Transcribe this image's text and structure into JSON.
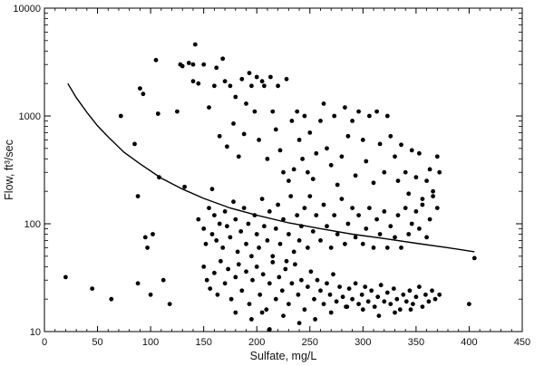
{
  "chart_data": {
    "type": "scatter",
    "xlabel": "Sulfate, mg/L",
    "ylabel": "Flow, ft³/sec",
    "xlim": [
      0,
      450
    ],
    "ylim": [
      10,
      10000
    ],
    "yscale": "log",
    "x_ticks": [
      0,
      50,
      100,
      150,
      200,
      250,
      300,
      350,
      400,
      450
    ],
    "x_tick_labels": [
      "0",
      "50",
      "100",
      "150",
      "200",
      "250",
      "300",
      "350",
      "400",
      "450"
    ],
    "y_ticks": [
      10,
      100,
      1000,
      10000
    ],
    "y_tick_labels": [
      "10",
      "100",
      "1000",
      "10000"
    ],
    "grid": false,
    "point_color": "#000000",
    "line_color": "#000000",
    "fit_curve": {
      "x": [
        22,
        30,
        40,
        50,
        60,
        75,
        90,
        110,
        130,
        150,
        175,
        200,
        230,
        260,
        290,
        320,
        350,
        380,
        405
      ],
      "y": [
        2000,
        1480,
        1080,
        810,
        640,
        460,
        360,
        265,
        210,
        172,
        140,
        120,
        102,
        90,
        80,
        73,
        66,
        60,
        55
      ]
    },
    "points": [
      [
        20,
        32
      ],
      [
        45,
        25
      ],
      [
        63,
        20
      ],
      [
        72,
        1000
      ],
      [
        85,
        550
      ],
      [
        88,
        180
      ],
      [
        88,
        28
      ],
      [
        90,
        1800
      ],
      [
        93,
        1600
      ],
      [
        95,
        75
      ],
      [
        97,
        60
      ],
      [
        100,
        22
      ],
      [
        102,
        80
      ],
      [
        105,
        3300
      ],
      [
        107,
        1050
      ],
      [
        108,
        270
      ],
      [
        112,
        30
      ],
      [
        118,
        18
      ],
      [
        125,
        1100
      ],
      [
        128,
        3000
      ],
      [
        130,
        2900
      ],
      [
        132,
        220
      ],
      [
        136,
        3100
      ],
      [
        140,
        3000
      ],
      [
        140,
        2100
      ],
      [
        142,
        4600
      ],
      [
        145,
        2000
      ],
      [
        150,
        3000
      ],
      [
        155,
        1200
      ],
      [
        158,
        210
      ],
      [
        160,
        1900
      ],
      [
        162,
        2800
      ],
      [
        165,
        650
      ],
      [
        168,
        3400
      ],
      [
        170,
        2100
      ],
      [
        172,
        520
      ],
      [
        175,
        1900
      ],
      [
        178,
        850
      ],
      [
        180,
        1500
      ],
      [
        183,
        420
      ],
      [
        186,
        2200
      ],
      [
        188,
        680
      ],
      [
        190,
        1300
      ],
      [
        193,
        2500
      ],
      [
        195,
        1900
      ],
      [
        198,
        1100
      ],
      [
        200,
        2300
      ],
      [
        202,
        600
      ],
      [
        205,
        2100
      ],
      [
        207,
        1900
      ],
      [
        210,
        400
      ],
      [
        213,
        2300
      ],
      [
        215,
        1100
      ],
      [
        218,
        750
      ],
      [
        220,
        1900
      ],
      [
        222,
        480
      ],
      [
        225,
        300
      ],
      [
        228,
        2200
      ],
      [
        230,
        250
      ],
      [
        233,
        900
      ],
      [
        235,
        320
      ],
      [
        238,
        1100
      ],
      [
        240,
        600
      ],
      [
        243,
        400
      ],
      [
        245,
        1000
      ],
      [
        248,
        300
      ],
      [
        250,
        700
      ],
      [
        253,
        260
      ],
      [
        256,
        450
      ],
      [
        260,
        900
      ],
      [
        263,
        1300
      ],
      [
        266,
        500
      ],
      [
        270,
        350
      ],
      [
        273,
        1000
      ],
      [
        276,
        230
      ],
      [
        280,
        420
      ],
      [
        283,
        1200
      ],
      [
        286,
        650
      ],
      [
        290,
        900
      ],
      [
        293,
        280
      ],
      [
        296,
        1100
      ],
      [
        300,
        600
      ],
      [
        303,
        380
      ],
      [
        306,
        1000
      ],
      [
        310,
        240
      ],
      [
        313,
        1100
      ],
      [
        316,
        550
      ],
      [
        320,
        300
      ],
      [
        323,
        1000
      ],
      [
        326,
        650
      ],
      [
        330,
        420
      ],
      [
        333,
        250
      ],
      [
        336,
        540
      ],
      [
        340,
        300
      ],
      [
        343,
        190
      ],
      [
        346,
        480
      ],
      [
        350,
        270
      ],
      [
        353,
        450
      ],
      [
        356,
        170
      ],
      [
        360,
        250
      ],
      [
        363,
        320
      ],
      [
        366,
        200
      ],
      [
        370,
        420
      ],
      [
        372,
        300
      ],
      [
        145,
        110
      ],
      [
        150,
        90
      ],
      [
        152,
        65
      ],
      [
        155,
        140
      ],
      [
        158,
        80
      ],
      [
        160,
        120
      ],
      [
        162,
        70
      ],
      [
        165,
        100
      ],
      [
        168,
        60
      ],
      [
        170,
        130
      ],
      [
        172,
        95
      ],
      [
        175,
        75
      ],
      [
        178,
        160
      ],
      [
        180,
        110
      ],
      [
        182,
        55
      ],
      [
        185,
        85
      ],
      [
        188,
        140
      ],
      [
        190,
        65
      ],
      [
        192,
        100
      ],
      [
        195,
        50
      ],
      [
        198,
        120
      ],
      [
        200,
        80
      ],
      [
        202,
        60
      ],
      [
        205,
        170
      ],
      [
        207,
        95
      ],
      [
        210,
        70
      ],
      [
        212,
        130
      ],
      [
        215,
        50
      ],
      [
        218,
        90
      ],
      [
        220,
        150
      ],
      [
        222,
        65
      ],
      [
        225,
        110
      ],
      [
        228,
        45
      ],
      [
        230,
        80
      ],
      [
        232,
        180
      ],
      [
        235,
        55
      ],
      [
        238,
        120
      ],
      [
        240,
        70
      ],
      [
        242,
        95
      ],
      [
        245,
        140
      ],
      [
        248,
        60
      ],
      [
        250,
        180
      ],
      [
        253,
        85
      ],
      [
        256,
        120
      ],
      [
        260,
        70
      ],
      [
        263,
        150
      ],
      [
        266,
        95
      ],
      [
        270,
        60
      ],
      [
        273,
        120
      ],
      [
        276,
        80
      ],
      [
        280,
        170
      ],
      [
        283,
        65
      ],
      [
        286,
        100
      ],
      [
        290,
        140
      ],
      [
        293,
        75
      ],
      [
        296,
        120
      ],
      [
        300,
        65
      ],
      [
        303,
        90
      ],
      [
        306,
        140
      ],
      [
        310,
        60
      ],
      [
        313,
        110
      ],
      [
        316,
        80
      ],
      [
        320,
        130
      ],
      [
        323,
        60
      ],
      [
        326,
        95
      ],
      [
        330,
        75
      ],
      [
        333,
        120
      ],
      [
        336,
        60
      ],
      [
        340,
        140
      ],
      [
        343,
        80
      ],
      [
        346,
        100
      ],
      [
        350,
        130
      ],
      [
        353,
        90
      ],
      [
        356,
        150
      ],
      [
        360,
        75
      ],
      [
        363,
        110
      ],
      [
        366,
        180
      ],
      [
        370,
        140
      ],
      [
        150,
        40
      ],
      [
        153,
        30
      ],
      [
        156,
        25
      ],
      [
        160,
        35
      ],
      [
        163,
        22
      ],
      [
        166,
        45
      ],
      [
        170,
        28
      ],
      [
        173,
        38
      ],
      [
        176,
        20
      ],
      [
        180,
        32
      ],
      [
        183,
        42
      ],
      [
        186,
        24
      ],
      [
        190,
        36
      ],
      [
        193,
        18
      ],
      [
        196,
        30
      ],
      [
        200,
        40
      ],
      [
        203,
        22
      ],
      [
        206,
        34
      ],
      [
        209,
        16
      ],
      [
        212,
        28
      ],
      [
        215,
        44
      ],
      [
        218,
        20
      ],
      [
        221,
        32
      ],
      [
        224,
        24
      ],
      [
        227,
        38
      ],
      [
        230,
        18
      ],
      [
        233,
        28
      ],
      [
        236,
        42
      ],
      [
        239,
        22
      ],
      [
        242,
        30
      ],
      [
        245,
        16
      ],
      [
        248,
        26
      ],
      [
        251,
        36
      ],
      [
        254,
        20
      ],
      [
        257,
        30
      ],
      [
        260,
        24
      ],
      [
        263,
        18
      ],
      [
        266,
        28
      ],
      [
        269,
        22
      ],
      [
        272,
        34
      ],
      [
        275,
        19
      ],
      [
        278,
        26
      ],
      [
        281,
        21
      ],
      [
        284,
        17
      ],
      [
        287,
        25
      ],
      [
        290,
        20
      ],
      [
        293,
        28
      ],
      [
        296,
        18
      ],
      [
        299,
        22
      ],
      [
        302,
        26
      ],
      [
        305,
        19
      ],
      [
        308,
        24
      ],
      [
        311,
        17
      ],
      [
        314,
        21
      ],
      [
        317,
        27
      ],
      [
        320,
        19
      ],
      [
        323,
        23
      ],
      [
        326,
        18
      ],
      [
        329,
        25
      ],
      [
        332,
        20
      ],
      [
        335,
        16
      ],
      [
        338,
        22
      ],
      [
        341,
        19
      ],
      [
        344,
        24
      ],
      [
        347,
        18
      ],
      [
        350,
        21
      ],
      [
        353,
        26
      ],
      [
        356,
        17
      ],
      [
        359,
        22
      ],
      [
        362,
        19
      ],
      [
        365,
        24
      ],
      [
        368,
        20
      ],
      [
        372,
        22
      ],
      [
        400,
        18
      ],
      [
        405,
        48
      ],
      [
        212,
        10.5
      ],
      [
        240,
        12
      ],
      [
        225,
        14
      ],
      [
        270,
        15
      ],
      [
        300,
        16
      ],
      [
        330,
        15
      ],
      [
        195,
        13
      ],
      [
        255,
        13
      ],
      [
        285,
        17
      ],
      [
        315,
        14
      ],
      [
        345,
        16
      ],
      [
        180,
        15
      ],
      [
        205,
        15
      ]
    ]
  }
}
